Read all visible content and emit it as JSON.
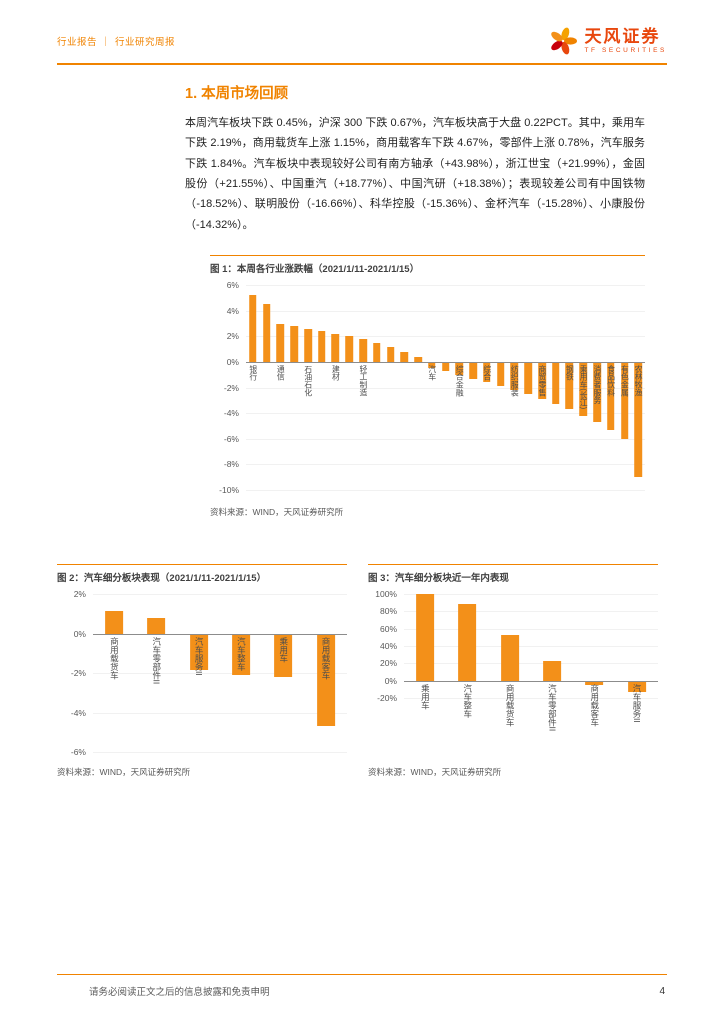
{
  "header": {
    "left_label_1": "行业报告",
    "separator": "｜",
    "left_label_2": "行业研究周报",
    "brand_name": "天风证券",
    "brand_sub": "TF SECURITIES"
  },
  "section": {
    "title": "1. 本周市场回顾",
    "paragraph": "本周汽车板块下跌 0.45%，沪深 300 下跌 0.67%，汽车板块高于大盘 0.22PCT。其中，乘用车下跌 2.19%，商用载货车上涨 1.15%，商用载客车下跌 4.67%，零部件上涨 0.78%，汽车服务下跌 1.84%。汽车板块中表现较好公司有南方轴承（+43.98%），浙江世宝（+21.99%），金固股份（+21.55%）、中国重汽（+18.77%）、中国汽研（+18.38%）；表现较差公司有中国铁物（-18.52%）、联明股份（-16.66%）、科华控股（-15.36%）、金杯汽车（-15.28%）、小康股份（-14.32%）。"
  },
  "figure1": {
    "title": "图 1：本周各行业涨跌幅（2021/1/11-2021/1/15）",
    "source": "资料来源：WIND，天风证券研究所"
  },
  "figure2": {
    "title": "图 2：汽车细分板块表现（2021/1/11-2021/1/15）",
    "source": "资料来源：WIND，天风证券研究所"
  },
  "figure3": {
    "title": "图 3：汽车细分板块近一年内表现",
    "source": "资料来源：WIND，天风证券研究所"
  },
  "footer": {
    "disclaimer": "请务必阅读正文之后的信息披露和免责申明",
    "page_number": "4"
  },
  "colors": {
    "accent": "#F08300",
    "bar": "#F39019"
  },
  "chart_data": [
    {
      "type": "bar",
      "title": "本周各行业涨跌幅（2021/1/11-2021/1/15）",
      "categories": [
        "银行",
        "",
        "通信",
        "",
        "石油石化",
        "",
        "建材",
        "",
        "轻工制造",
        "",
        "",
        "",
        "",
        "汽车",
        "",
        "综合金融",
        "",
        "综合",
        "",
        "纺织服装",
        "",
        "商贸零售",
        "",
        "钢铁",
        "乘用车(长江)",
        "消费者服务",
        "食品饮料",
        "有色金属",
        "农林牧渔"
      ],
      "values": [
        5.2,
        4.5,
        3.0,
        2.8,
        2.6,
        2.4,
        2.2,
        2.0,
        1.8,
        1.5,
        1.2,
        0.8,
        0.4,
        -0.45,
        -0.7,
        -1.0,
        -1.3,
        -1.6,
        -1.9,
        -2.2,
        -2.5,
        -2.9,
        -3.3,
        -3.7,
        -4.2,
        -4.7,
        -5.3,
        -6.0,
        -9.0
      ],
      "ylim": [
        -10,
        6
      ],
      "ystep": 2,
      "unit": "%",
      "legend": "none",
      "grid": "light"
    },
    {
      "type": "bar",
      "title": "汽车细分板块表现（2021/1/11-2021/1/15）",
      "categories": [
        "商用载货车",
        "汽车零部件II",
        "汽车服务II",
        "汽车整车",
        "乘用车",
        "商用载客车"
      ],
      "values": [
        1.15,
        0.78,
        -1.84,
        -2.1,
        -2.19,
        -4.67
      ],
      "ylim": [
        -6,
        2
      ],
      "ystep": 2,
      "unit": "%",
      "legend": "none",
      "grid": "light"
    },
    {
      "type": "bar",
      "title": "汽车细分板块近一年内表现",
      "categories": [
        "乘用车",
        "汽车整车",
        "商用载货车",
        "汽车零部件II",
        "商用载客车",
        "汽车服务II"
      ],
      "values": [
        100,
        88,
        53,
        23,
        -5,
        -13
      ],
      "ylim": [
        -20,
        100
      ],
      "ystep": 20,
      "unit": "%",
      "legend": "none",
      "grid": "light"
    }
  ]
}
